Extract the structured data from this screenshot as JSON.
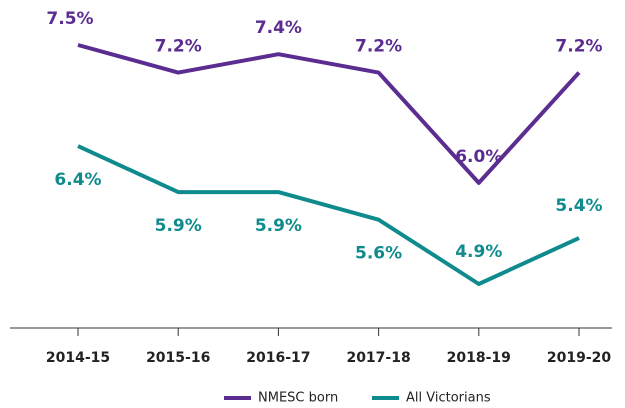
{
  "chart_data": {
    "type": "line",
    "categories": [
      "2014-15",
      "2015-16",
      "2016-17",
      "2017-18",
      "2018-19",
      "2019-20"
    ],
    "series": [
      {
        "name": "NMESC born",
        "color": "#5c2d91",
        "values": [
          7.5,
          7.2,
          7.4,
          7.2,
          6.0,
          7.2
        ],
        "value_labels": [
          "7.5%",
          "7.2%",
          "7.4%",
          "7.2%",
          "6.0%",
          "7.2%"
        ]
      },
      {
        "name": "All Victorians",
        "color": "#0f8b8d",
        "values": [
          6.4,
          5.9,
          5.9,
          5.6,
          4.9,
          5.4
        ],
        "value_labels": [
          "6.4%",
          "5.9%",
          "5.9%",
          "5.6%",
          "4.9%",
          "5.4%"
        ]
      }
    ],
    "legend": "bottom"
  }
}
